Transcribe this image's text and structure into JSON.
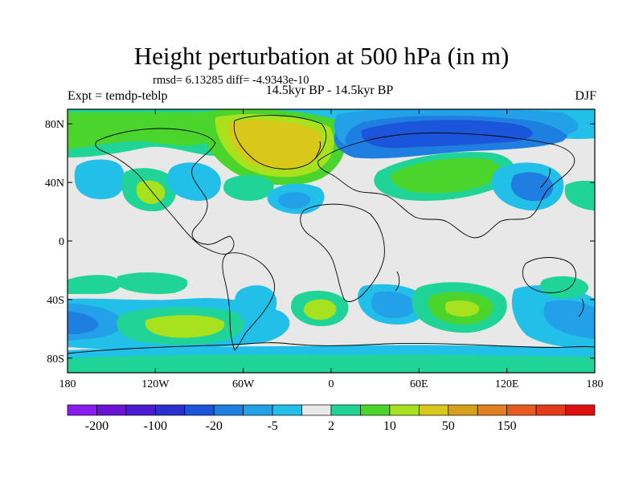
{
  "title": "Height perturbation at 500 hPa (in m)",
  "stats": "rmsd= 6.13285 diff= -4.9343e-10",
  "period": "14.5kyr BP - 14.5kyr BP",
  "experiment": "Expt = temdp-teblp",
  "season": "DJF",
  "lat_ticks": [
    {
      "label": "80N",
      "lat": 80
    },
    {
      "label": "40N",
      "lat": 40
    },
    {
      "label": "0",
      "lat": 0
    },
    {
      "label": "40S",
      "lat": -40
    },
    {
      "label": "80S",
      "lat": -80
    }
  ],
  "lon_ticks": [
    {
      "label": "180",
      "lon": -180
    },
    {
      "label": "120W",
      "lon": -120
    },
    {
      "label": "60W",
      "lon": -60
    },
    {
      "label": "0",
      "lon": 0
    },
    {
      "label": "60E",
      "lon": 60
    },
    {
      "label": "120E",
      "lon": 120
    },
    {
      "label": "180",
      "lon": 180
    }
  ],
  "colorbar": {
    "colors": [
      "#8a1cf0",
      "#6a12d6",
      "#4a1bd3",
      "#2a2fd0",
      "#1a55dc",
      "#1f7fe0",
      "#22a0e8",
      "#22bfe8",
      "#e8e8e8",
      "#20d498",
      "#4ad42c",
      "#a8e21e",
      "#d8c81a",
      "#d8a01a",
      "#e28020",
      "#e85a1e",
      "#e53b1a",
      "#e00f0f"
    ],
    "labels": [
      {
        "text": "-200",
        "boundary": 1
      },
      {
        "text": "-100",
        "boundary": 3
      },
      {
        "text": "-20",
        "boundary": 5
      },
      {
        "text": "-5",
        "boundary": 7
      },
      {
        "text": "2",
        "boundary": 9
      },
      {
        "text": "10",
        "boundary": 11
      },
      {
        "text": "50",
        "boundary": 13
      },
      {
        "text": "150",
        "boundary": 15
      }
    ]
  }
}
